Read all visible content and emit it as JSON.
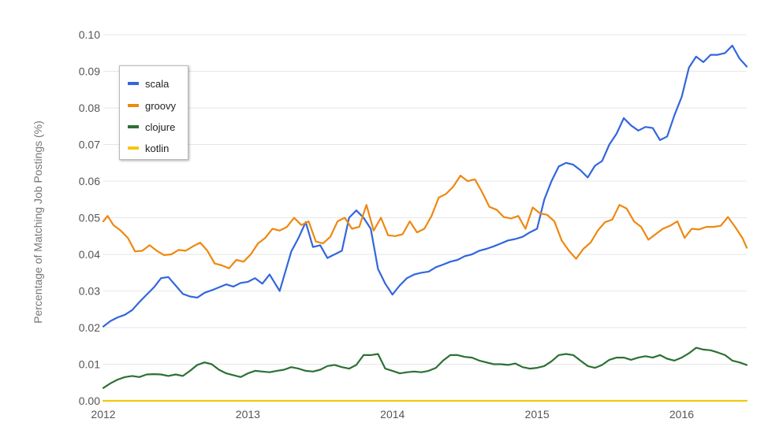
{
  "chart_data": {
    "type": "line",
    "ylabel": "Percentage of Matching Job Postings (%)",
    "xlim": [
      2012.0,
      2016.45
    ],
    "ylim": [
      0.0,
      0.1
    ],
    "x_ticks": [
      "2012",
      "2013",
      "2014",
      "2015",
      "2016"
    ],
    "y_ticks": [
      "0.00",
      "0.01",
      "0.02",
      "0.03",
      "0.04",
      "0.05",
      "0.06",
      "0.07",
      "0.08",
      "0.09",
      "0.10"
    ],
    "grid": true,
    "legend_position": "top-left",
    "series": [
      {
        "name": "scala",
        "color": "#3366dd",
        "x": [
          2012.0,
          2012.05,
          2012.1,
          2012.15,
          2012.2,
          2012.25,
          2012.3,
          2012.35,
          2012.4,
          2012.45,
          2012.5,
          2012.55,
          2012.6,
          2012.65,
          2012.7,
          2012.75,
          2012.8,
          2012.85,
          2012.9,
          2012.95,
          2013.0,
          2013.05,
          2013.1,
          2013.15,
          2013.22,
          2013.3,
          2013.35,
          2013.4,
          2013.45,
          2013.5,
          2013.55,
          2013.6,
          2013.65,
          2013.7,
          2013.75,
          2013.8,
          2013.85,
          2013.9,
          2013.95,
          2014.0,
          2014.05,
          2014.1,
          2014.15,
          2014.2,
          2014.25,
          2014.3,
          2014.35,
          2014.4,
          2014.45,
          2014.5,
          2014.55,
          2014.6,
          2014.65,
          2014.7,
          2014.75,
          2014.8,
          2014.85,
          2014.9,
          2014.95,
          2015.0,
          2015.05,
          2015.1,
          2015.15,
          2015.2,
          2015.25,
          2015.3,
          2015.35,
          2015.4,
          2015.45,
          2015.5,
          2015.55,
          2015.6,
          2015.65,
          2015.7,
          2015.75,
          2015.8,
          2015.85,
          2015.9,
          2015.95,
          2016.0,
          2016.05,
          2016.1,
          2016.15,
          2016.2,
          2016.25,
          2016.3,
          2016.35,
          2016.4,
          2016.45
        ],
        "values": [
          0.0203,
          0.0218,
          0.0228,
          0.0235,
          0.0248,
          0.027,
          0.029,
          0.031,
          0.0335,
          0.0338,
          0.0315,
          0.0292,
          0.0285,
          0.0282,
          0.0295,
          0.0302,
          0.031,
          0.0318,
          0.0312,
          0.0322,
          0.0325,
          0.0335,
          0.032,
          0.0345,
          0.03,
          0.0408,
          0.0445,
          0.0488,
          0.042,
          0.0425,
          0.039,
          0.04,
          0.041,
          0.05,
          0.052,
          0.05,
          0.047,
          0.036,
          0.032,
          0.029,
          0.0315,
          0.0335,
          0.0345,
          0.035,
          0.0353,
          0.0365,
          0.0372,
          0.038,
          0.0385,
          0.0395,
          0.04,
          0.041,
          0.0415,
          0.0422,
          0.043,
          0.0438,
          0.0442,
          0.0448,
          0.046,
          0.047,
          0.055,
          0.06,
          0.064,
          0.065,
          0.0645,
          0.063,
          0.061,
          0.0642,
          0.0655,
          0.07,
          0.073,
          0.0772,
          0.0752,
          0.0738,
          0.0748,
          0.0745,
          0.0712,
          0.0722,
          0.078,
          0.083,
          0.091,
          0.094,
          0.0925,
          0.0945,
          0.0945,
          0.095,
          0.097,
          0.0935,
          0.0913
        ]
      },
      {
        "name": "groovy",
        "color": "#ee8811",
        "x": [
          2012.0,
          2012.03,
          2012.07,
          2012.12,
          2012.17,
          2012.22,
          2012.27,
          2012.32,
          2012.37,
          2012.42,
          2012.47,
          2012.52,
          2012.57,
          2012.62,
          2012.67,
          2012.72,
          2012.77,
          2012.82,
          2012.87,
          2012.92,
          2012.97,
          2013.02,
          2013.07,
          2013.12,
          2013.17,
          2013.22,
          2013.27,
          2013.32,
          2013.37,
          2013.42,
          2013.47,
          2013.52,
          2013.57,
          2013.62,
          2013.67,
          2013.72,
          2013.77,
          2013.82,
          2013.87,
          2013.92,
          2013.97,
          2014.02,
          2014.07,
          2014.12,
          2014.17,
          2014.22,
          2014.27,
          2014.32,
          2014.37,
          2014.42,
          2014.47,
          2014.52,
          2014.57,
          2014.62,
          2014.67,
          2014.72,
          2014.77,
          2014.82,
          2014.87,
          2014.92,
          2014.97,
          2015.02,
          2015.07,
          2015.12,
          2015.17,
          2015.22,
          2015.27,
          2015.32,
          2015.37,
          2015.42,
          2015.47,
          2015.52,
          2015.57,
          2015.62,
          2015.67,
          2015.72,
          2015.77,
          2015.82,
          2015.87,
          2015.92,
          2015.97,
          2016.02,
          2016.07,
          2016.12,
          2016.17,
          2016.22,
          2016.27,
          2016.32,
          2016.37,
          2016.42,
          2016.45
        ],
        "values": [
          0.049,
          0.0505,
          0.048,
          0.0465,
          0.0445,
          0.0408,
          0.041,
          0.0425,
          0.041,
          0.0398,
          0.04,
          0.0412,
          0.041,
          0.0422,
          0.0432,
          0.041,
          0.0375,
          0.037,
          0.0362,
          0.0385,
          0.038,
          0.04,
          0.043,
          0.0445,
          0.047,
          0.0465,
          0.0475,
          0.05,
          0.048,
          0.049,
          0.0435,
          0.043,
          0.0448,
          0.049,
          0.05,
          0.047,
          0.0475,
          0.0535,
          0.0465,
          0.05,
          0.0452,
          0.045,
          0.0455,
          0.049,
          0.046,
          0.047,
          0.0505,
          0.0555,
          0.0565,
          0.0585,
          0.0615,
          0.06,
          0.0605,
          0.057,
          0.053,
          0.0522,
          0.0502,
          0.0498,
          0.0505,
          0.047,
          0.0528,
          0.0512,
          0.0508,
          0.049,
          0.0438,
          0.041,
          0.0388,
          0.0415,
          0.0432,
          0.0465,
          0.0488,
          0.0495,
          0.0535,
          0.0525,
          0.049,
          0.0475,
          0.044,
          0.0455,
          0.047,
          0.0478,
          0.049,
          0.0445,
          0.047,
          0.0468,
          0.0475,
          0.0475,
          0.0478,
          0.0502,
          0.0475,
          0.0445,
          0.0418
        ]
      },
      {
        "name": "clojure",
        "color": "#2d7034",
        "x": [
          2012.0,
          2012.05,
          2012.1,
          2012.15,
          2012.2,
          2012.25,
          2012.3,
          2012.35,
          2012.4,
          2012.45,
          2012.5,
          2012.55,
          2012.6,
          2012.65,
          2012.7,
          2012.75,
          2012.8,
          2012.85,
          2012.9,
          2012.95,
          2013.0,
          2013.05,
          2013.1,
          2013.15,
          2013.2,
          2013.25,
          2013.3,
          2013.35,
          2013.4,
          2013.45,
          2013.5,
          2013.55,
          2013.6,
          2013.65,
          2013.7,
          2013.75,
          2013.8,
          2013.85,
          2013.9,
          2013.95,
          2014.0,
          2014.05,
          2014.1,
          2014.15,
          2014.2,
          2014.25,
          2014.3,
          2014.35,
          2014.4,
          2014.45,
          2014.5,
          2014.55,
          2014.6,
          2014.65,
          2014.7,
          2014.75,
          2014.8,
          2014.85,
          2014.9,
          2014.95,
          2015.0,
          2015.05,
          2015.1,
          2015.15,
          2015.2,
          2015.25,
          2015.3,
          2015.35,
          2015.4,
          2015.45,
          2015.5,
          2015.55,
          2015.6,
          2015.65,
          2015.7,
          2015.75,
          2015.8,
          2015.85,
          2015.9,
          2015.95,
          2016.0,
          2016.05,
          2016.1,
          2016.15,
          2016.2,
          2016.25,
          2016.3,
          2016.35,
          2016.4,
          2016.45
        ],
        "values": [
          0.0035,
          0.0048,
          0.0058,
          0.0065,
          0.0068,
          0.0065,
          0.0072,
          0.0073,
          0.0072,
          0.0068,
          0.0072,
          0.0068,
          0.0082,
          0.0098,
          0.0105,
          0.01,
          0.0085,
          0.0075,
          0.007,
          0.0065,
          0.0075,
          0.0082,
          0.008,
          0.0078,
          0.0082,
          0.0085,
          0.0092,
          0.0088,
          0.0082,
          0.008,
          0.0085,
          0.0095,
          0.0098,
          0.0092,
          0.0088,
          0.0098,
          0.0125,
          0.0125,
          0.0128,
          0.0088,
          0.0082,
          0.0075,
          0.0078,
          0.008,
          0.0078,
          0.0082,
          0.009,
          0.011,
          0.0125,
          0.0125,
          0.012,
          0.0118,
          0.011,
          0.0105,
          0.01,
          0.01,
          0.0098,
          0.0102,
          0.0092,
          0.0088,
          0.009,
          0.0095,
          0.0108,
          0.0125,
          0.0128,
          0.0125,
          0.011,
          0.0095,
          0.009,
          0.0098,
          0.0112,
          0.0118,
          0.0118,
          0.0112,
          0.0118,
          0.0122,
          0.0118,
          0.0125,
          0.0115,
          0.011,
          0.0118,
          0.013,
          0.0145,
          0.014,
          0.0138,
          0.0132,
          0.0125,
          0.011,
          0.0105,
          0.0098
        ]
      },
      {
        "name": "kotlin",
        "color": "#f2c811",
        "x": [
          2012.0,
          2016.45
        ],
        "values": [
          0.0,
          0.0
        ]
      }
    ]
  }
}
